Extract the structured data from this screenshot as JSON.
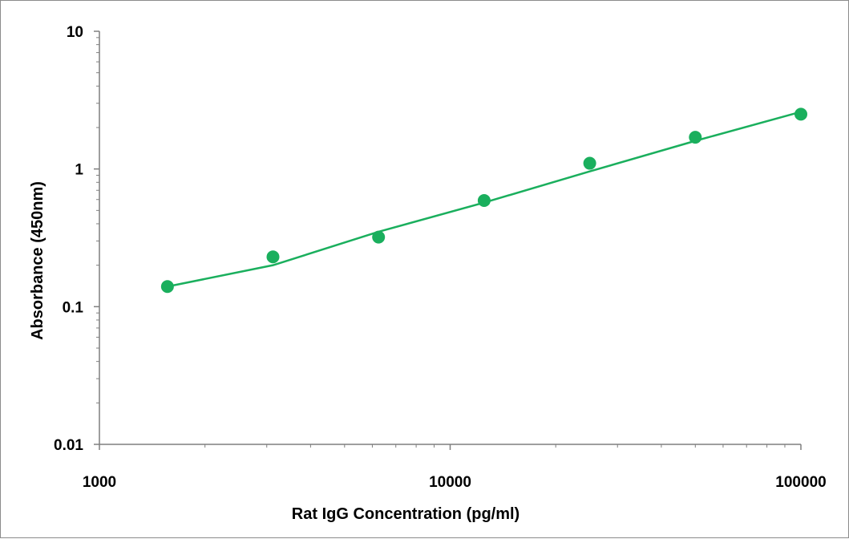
{
  "chart_data": {
    "type": "scatter",
    "xlabel": "Rat IgG Concentration (pg/ml)",
    "ylabel": "Absorbance (450nm)",
    "xscale": "log",
    "yscale": "log",
    "xlim": [
      1000,
      100000
    ],
    "ylim": [
      0.01,
      10
    ],
    "xticks": [
      "1000",
      "10000",
      "100000"
    ],
    "yticks": [
      "10",
      "1",
      "0.1",
      "0.01"
    ],
    "grid": false,
    "legend": "none",
    "series": [
      {
        "x": [
          1563,
          3125,
          6250,
          12500,
          25000,
          50000,
          100000
        ],
        "y": [
          0.14,
          0.23,
          0.32,
          0.59,
          1.1,
          1.7,
          2.5
        ]
      }
    ],
    "fit_line": {
      "x": [
        1563,
        3125,
        6250,
        12500,
        25000,
        50000,
        100000
      ],
      "y": [
        0.14,
        0.2,
        0.35,
        0.57,
        0.96,
        1.6,
        2.6
      ]
    },
    "colors": {
      "series": "#1aaf5d",
      "axis": "#7f7f7f",
      "border": "#8c8c8c"
    }
  }
}
